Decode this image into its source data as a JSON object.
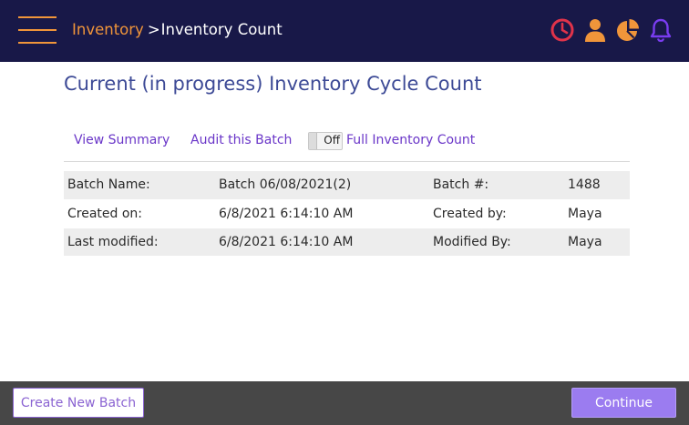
{
  "header": {
    "breadcrumb_parent": "Inventory",
    "breadcrumb_separator": ">",
    "breadcrumb_current": "Inventory Count",
    "icons": [
      "menu-icon",
      "clock-icon",
      "user-icon",
      "pie-chart-icon",
      "bell-icon"
    ]
  },
  "page": {
    "title": "Current (in progress) Inventory Cycle Count"
  },
  "actions": {
    "view_summary": "View Summary",
    "audit_batch": "Audit this Batch",
    "toggle_state": "Off",
    "full_inventory": "Full Inventory Count"
  },
  "batch_info": {
    "rows": [
      {
        "label1": "Batch Name:",
        "value1": "Batch 06/08/2021(2)",
        "label2": "Batch #:",
        "value2": "1488"
      },
      {
        "label1": "Created on:",
        "value1": "6/8/2021 6:14:10 AM",
        "label2": "Created by:",
        "value2": "Maya"
      },
      {
        "label1": "Last modified:",
        "value1": "6/8/2021 6:14:10 AM",
        "label2": "Modified By:",
        "value2": "Maya"
      }
    ]
  },
  "footer": {
    "create_label": "Create New Batch",
    "continue_label": "Continue"
  },
  "colors": {
    "header_bg": "#181848",
    "accent_orange": "#f0953a",
    "clock_red": "#e0334a",
    "bell_purple": "#7a3cf0",
    "title_blue": "#3d4a96",
    "link_purple": "#6a36c8",
    "footer_bg": "#474747",
    "continue_bg": "#9b7cf0"
  }
}
